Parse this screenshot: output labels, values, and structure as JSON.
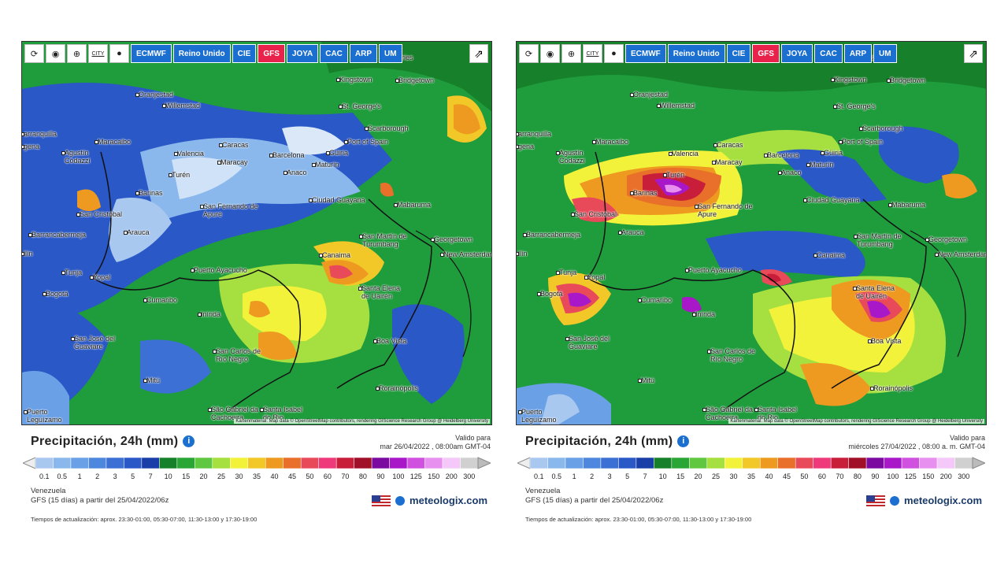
{
  "toolbar": {
    "models": [
      "ECMWF",
      "Reino Unido",
      "CIE",
      "GFS",
      "JOYA",
      "CAC",
      "ARP",
      "UM"
    ],
    "active_model": "GFS",
    "city_label": "CITY"
  },
  "attribution": "Kartenmaterial: Map data © OpenStreetMap contributors, rendering GIScience Research Group @ Heidelberg University",
  "title": "Precipitación, 24h (mm)",
  "valid_label": "Valido para",
  "legend": {
    "labels": [
      "0.1",
      "0.5",
      "1",
      "2",
      "3",
      "5",
      "7",
      "10",
      "15",
      "20",
      "25",
      "30",
      "35",
      "40",
      "45",
      "50",
      "60",
      "70",
      "80",
      "90",
      "100",
      "125",
      "150",
      "200",
      "300"
    ],
    "colors": [
      "#a8c8f0",
      "#8ab8ec",
      "#6aa0e6",
      "#4e88de",
      "#3c70d4",
      "#2a58c6",
      "#1a3ea8",
      "#17802a",
      "#2aa636",
      "#60c840",
      "#a6e040",
      "#f2f23a",
      "#f2c828",
      "#ee9a20",
      "#e8702a",
      "#e84a5a",
      "#ee3a7a",
      "#c81e3a",
      "#a01028",
      "#7a0aa0",
      "#a818c8",
      "#d050e0",
      "#e890f0",
      "#f4c8f8",
      "#d0d0d0"
    ]
  },
  "panels": [
    {
      "valid_date": "mar 26/04/2022 , 08:00am GMT-04",
      "region": "Venezuela",
      "run": "GFS  (15 días)  a partir del 25/04/2022/06z",
      "update": "Tiempos de actualización: aprox. 23:30-01:00, 05:30-07:00, 11:30-13:00 y 17:30-19:00",
      "logo": "meteologix.com"
    },
    {
      "valid_date": "miércoles 27/04/2022 ,  08:00 a. m. GMT-04",
      "region": "Venezuela",
      "run": "GFS  (15 días)  a partir del 25/04/2022/06z",
      "update": "Tiempos de actualización: aprox. 23:30-01:00, 05:30-07:00, 11:30-13:00 y 17:30-19:00",
      "logo": "meteologix.com"
    }
  ],
  "places_left": [
    "astries",
    "Kingstown",
    "Bridgetown",
    "Oranjestad",
    "Willemstad",
    "St. George's",
    "Scarborough",
    "arranquilla",
    "gena",
    "Maracaibo",
    "Port of Spain",
    "Agustín Codazzi",
    "Valencia",
    "Caracas",
    "Barcelona",
    "Güiria",
    "Maracay",
    "Maturín",
    "Turén",
    "Anaco",
    "Barinas",
    "Ciudad Guayana",
    "Mabaruma",
    "San Cristóbal",
    "San Fernando de Apure",
    "Arauca",
    "Barrancabermeja",
    "San Martín de Turumbang",
    "Georgetown",
    "Canaima",
    "New Amsterdam",
    "llín",
    "Tunja",
    "Yopal",
    "Puerto Ayacucho",
    "Santa Elena de Uairén",
    "Bogotá",
    "Cumaribo",
    "Inírida",
    "San José del Guaviare",
    "Boa Vista",
    "San Carlos de Río Negro",
    "Mitú",
    "Rorainópolis",
    "Puerto Leguízamo",
    "São Gabriel da Cachoeira",
    "Santa Isabel do Rio"
  ],
  "places_right": [
    "astries",
    "Kingstown",
    "Bridgetown",
    "Oranjestad",
    "Willemstad",
    "St. George's",
    "Scarborough",
    "arranquilla",
    "gena",
    "Maracaibo",
    "Port of Spain",
    "Agustín Codazzi",
    "Valencia",
    "Caracas",
    "Barcelona",
    "Güiria",
    "Maracay",
    "Maturín",
    "Turén",
    "Anaco",
    "Barinas",
    "Ciudad Guayana",
    "Mabaruma",
    "San Cristóbal",
    "San Fernando de Apure",
    "Arauca",
    "Barrancabermeja",
    "San Martín de Turumbang",
    "Georgetown",
    "Canaima",
    "New Amsterdam",
    "llín",
    "Tunja",
    "Yopal",
    "Puerto Ayacucho",
    "Santa Elena de Uairén",
    "Bogotá",
    "Cumaribo",
    "Inírida",
    "San José del Guaviare",
    "Boa Vista",
    "San Carlos de Río Negro",
    "Mitú",
    "Rorainópolis",
    "Puerto Leguízamo",
    "São Gabriel da Cachoeira",
    "Santa Isabel do Rio"
  ]
}
